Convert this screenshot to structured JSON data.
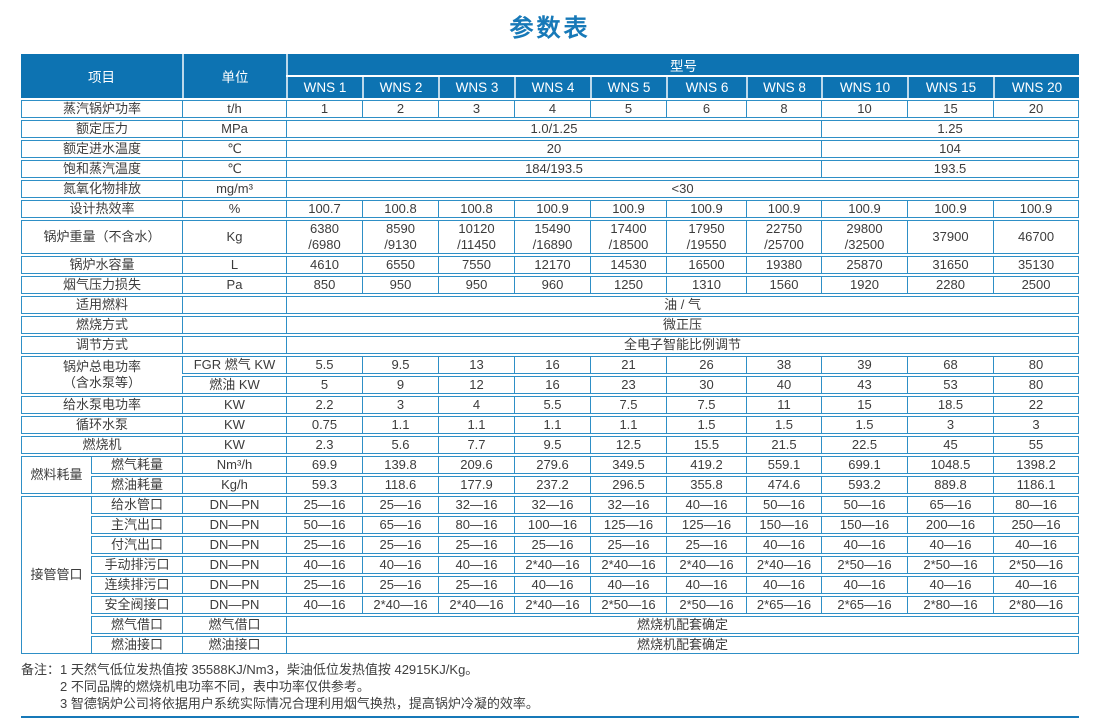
{
  "title": "参数表",
  "colors": {
    "header-bg": "#0d73b2",
    "border": "#2e8fc6",
    "accent": "#1779b8"
  },
  "table": {
    "head_rows": [
      [
        [
          "项目",
          2,
          2
        ],
        [
          "单位",
          1,
          2
        ],
        [
          "型号",
          10,
          1
        ]
      ],
      [
        "WNS 1",
        "WNS 2",
        "WNS 3",
        "WNS 4",
        "WNS 5",
        "WNS 6",
        "WNS 8",
        "WNS 10",
        "WNS 15",
        "WNS 20"
      ]
    ],
    "body_rows": [
      [
        [
          "蒸汽锅炉功率",
          2
        ],
        "t/h",
        "1",
        "2",
        "3",
        "4",
        "5",
        "6",
        "8",
        "10",
        "15",
        "20"
      ],
      [
        [
          "额定压力",
          2
        ],
        "MPa",
        [
          "1.0/1.25",
          7
        ],
        [
          "1.25",
          3
        ]
      ],
      [
        [
          "额定进水温度",
          2
        ],
        "℃",
        [
          "20",
          7
        ],
        [
          "104",
          3
        ]
      ],
      [
        [
          "饱和蒸汽温度",
          2
        ],
        "℃",
        [
          "184/193.5",
          7
        ],
        [
          "193.5",
          3
        ]
      ],
      [
        [
          "氮氧化物排放",
          2
        ],
        "mg/m³",
        [
          "<30",
          10
        ]
      ],
      [
        [
          "设计热效率",
          2
        ],
        "%",
        "100.7",
        "100.8",
        "100.8",
        "100.9",
        "100.9",
        "100.9",
        "100.9",
        "100.9",
        "100.9",
        "100.9"
      ],
      [
        [
          "锅炉重量（不含水）",
          2
        ],
        "Kg",
        "6380\n/6980",
        "8590\n/9130",
        "10120\n/11450",
        "15490\n/16890",
        "17400\n/18500",
        "17950\n/19550",
        "22750\n/25700",
        "29800\n/32500",
        "37900",
        "46700"
      ],
      [
        [
          "锅炉水容量",
          2
        ],
        "L",
        "4610",
        "6550",
        "7550",
        "12170",
        "14530",
        "16500",
        "19380",
        "25870",
        "31650",
        "35130"
      ],
      [
        [
          "烟气压力损失",
          2
        ],
        "Pa",
        "850",
        "950",
        "950",
        "960",
        "1250",
        "1310",
        "1560",
        "1920",
        "2280",
        "2500"
      ],
      [
        [
          "适用燃料",
          2
        ],
        "",
        [
          "油 / 气",
          10
        ]
      ],
      [
        [
          "燃烧方式",
          2
        ],
        "",
        [
          "微正压",
          10
        ]
      ],
      [
        [
          "调节方式",
          2
        ],
        "",
        [
          "全电子智能比例调节",
          10
        ]
      ],
      [
        [
          "锅炉总电功率\n（含水泵等）",
          2,
          2
        ],
        "FGR 燃气 KW",
        "5.5",
        "9.5",
        "13",
        "16",
        "21",
        "26",
        "38",
        "39",
        "68",
        "80"
      ],
      [
        "燃油 KW",
        "5",
        "9",
        "12",
        "16",
        "23",
        "30",
        "40",
        "43",
        "53",
        "80"
      ],
      [
        [
          "给水泵电功率",
          2
        ],
        "KW",
        "2.2",
        "3",
        "4",
        "5.5",
        "7.5",
        "7.5",
        "11",
        "15",
        "18.5",
        "22"
      ],
      [
        [
          "循环水泵",
          2
        ],
        "KW",
        "0.75",
        "1.1",
        "1.1",
        "1.1",
        "1.1",
        "1.5",
        "1.5",
        "1.5",
        "3",
        "3"
      ],
      [
        [
          "燃烧机",
          2
        ],
        "KW",
        "2.3",
        "5.6",
        "7.7",
        "9.5",
        "12.5",
        "15.5",
        "21.5",
        "22.5",
        "45",
        "55"
      ],
      [
        [
          "燃料耗量",
          1,
          2
        ],
        "燃气耗量",
        "Nm³/h",
        "69.9",
        "139.8",
        "209.6",
        "279.6",
        "349.5",
        "419.2",
        "559.1",
        "699.1",
        "1048.5",
        "1398.2"
      ],
      [
        "燃油耗量",
        "Kg/h",
        "59.3",
        "118.6",
        "177.9",
        "237.2",
        "296.5",
        "355.8",
        "474.6",
        "593.2",
        "889.8",
        "1186.1"
      ],
      [
        [
          "接管管口",
          1,
          8
        ],
        "给水管口",
        "DN—PN",
        "25—16",
        "25—16",
        "32—16",
        "32—16",
        "32—16",
        "40—16",
        "50—16",
        "50—16",
        "65—16",
        "80—16"
      ],
      [
        "主汽出口",
        "DN—PN",
        "50—16",
        "65—16",
        "80—16",
        "100—16",
        "125—16",
        "125—16",
        "150—16",
        "150—16",
        "200—16",
        "250—16"
      ],
      [
        "付汽出口",
        "DN—PN",
        "25—16",
        "25—16",
        "25—16",
        "25—16",
        "25—16",
        "25—16",
        "40—16",
        "40—16",
        "40—16",
        "40—16"
      ],
      [
        "手动排污口",
        "DN—PN",
        "40—16",
        "40—16",
        "40—16",
        "2*40—16",
        "2*40—16",
        "2*40—16",
        "2*40—16",
        "2*50—16",
        "2*50—16",
        "2*50—16"
      ],
      [
        "连续排污口",
        "DN—PN",
        "25—16",
        "25—16",
        "25—16",
        "40—16",
        "40—16",
        "40—16",
        "40—16",
        "40—16",
        "40—16",
        "40—16"
      ],
      [
        "安全阀接口",
        "DN—PN",
        "40—16",
        "2*40—16",
        "2*40—16",
        "2*40—16",
        "2*50—16",
        "2*50—16",
        "2*65—16",
        "2*65—16",
        "2*80—16",
        "2*80—16"
      ],
      [
        "燃气借口",
        "燃气借口",
        [
          "燃烧机配套确定",
          10
        ]
      ],
      [
        "燃油接口",
        "燃油接口",
        [
          "燃烧机配套确定",
          10
        ]
      ]
    ]
  },
  "notes": {
    "label": "备注：",
    "items": [
      "1  天然气低位发热值按 35588KJ/Nm3，柴油低位发热值按 42915KJ/Kg。",
      "2  不同品牌的燃烧机电功率不同，表中功率仅供参考。",
      "3  智德锅炉公司将依据用户系统实际情况合理利用烟气换热，提高锅炉冷凝的效率。"
    ]
  }
}
